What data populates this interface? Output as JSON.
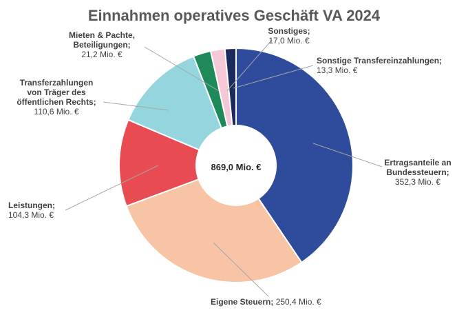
{
  "chart_data": {
    "type": "pie",
    "donut": true,
    "title": "Einnahmen operatives Geschäft VA 2024",
    "center_label": "869,0 Mio. €",
    "total": 869.0,
    "unit": "Mio. €",
    "slices": [
      {
        "name": "Ertragsanteile an Bundessteuern",
        "value": 352.3,
        "color": "#2f4b9b",
        "label_lines": [
          "Ertragsanteile an",
          "Bundessteuern;"
        ],
        "value_label": "352,3 Mio. €"
      },
      {
        "name": "Eigene Steuern",
        "value": 250.4,
        "color": "#f7c4a5",
        "label_lines": [
          "Eigene Steuern; 250,4 Mio. €"
        ],
        "value_label": ""
      },
      {
        "name": "Leistungen",
        "value": 104.3,
        "color": "#e84c52",
        "label_lines": [
          "Leistungen;"
        ],
        "value_label": "104,3 Mio. €"
      },
      {
        "name": "Transferzahlungen von Träger des öffentlichen Rechts",
        "value": 110.6,
        "color": "#94d5de",
        "label_lines": [
          "Transferzahlungen",
          "von Träger des",
          "öffentlichen Rechts;"
        ],
        "value_label": "110,6 Mio. €"
      },
      {
        "name": "Mieten & Pachte, Beteiligungen",
        "value": 21.2,
        "color": "#1e8a5a",
        "label_lines": [
          "Mieten & Pachte,",
          "Beteiligungen;"
        ],
        "value_label": "21,2 Mio. €"
      },
      {
        "name": "Sonstiges",
        "value": 17.0,
        "color": "#f5c8d8",
        "label_lines": [
          "Sonstiges;"
        ],
        "value_label": "17,0 Mio. €"
      },
      {
        "name": "Sonstige Transfereinzahlungen",
        "value": 13.3,
        "color": "#1c2a5c",
        "label_lines": [
          "Sonstige Transfereinzahlungen;"
        ],
        "value_label": "13,3 Mio. €"
      }
    ]
  }
}
